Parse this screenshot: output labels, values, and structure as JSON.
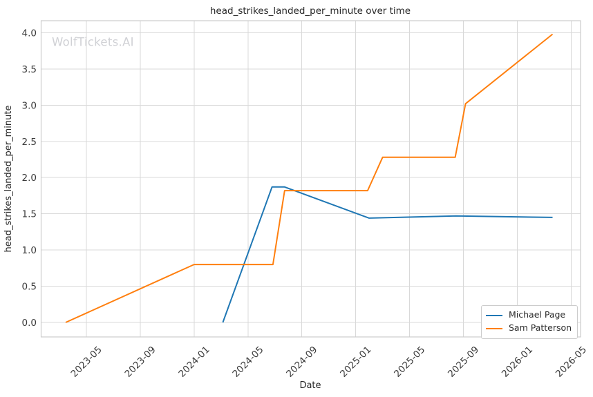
{
  "figure": {
    "background": "#ffffff",
    "watermark": "WolfTickets.AI"
  },
  "chart_data": {
    "type": "line",
    "title": "head_strikes_landed_per_minute over time",
    "xlabel": "Date",
    "ylabel": "head_strikes_landed_per_minute",
    "grid": true,
    "legend_position": "lower right",
    "x_tick_rotation_deg": 45,
    "x_ticks": [
      "2023-05",
      "2023-09",
      "2024-01",
      "2024-05",
      "2024-09",
      "2025-01",
      "2025-05",
      "2025-09",
      "2026-01",
      "2026-05"
    ],
    "y_ticks": [
      "0.0",
      "0.5",
      "1.0",
      "1.5",
      "2.0",
      "2.5",
      "3.0",
      "3.5",
      "4.0"
    ],
    "ylim": [
      -0.2,
      4.17
    ],
    "xlim": [
      "2023-01-19",
      "2026-05-22"
    ],
    "series": [
      {
        "name": "Michael Page",
        "color": "#1f77b4",
        "points": [
          {
            "date": "2024-03-05",
            "value": 0.0
          },
          {
            "date": "2024-06-25",
            "value": 1.87
          },
          {
            "date": "2024-07-23",
            "value": 1.87
          },
          {
            "date": "2025-02-01",
            "value": 1.44
          },
          {
            "date": "2025-08-15",
            "value": 1.47
          },
          {
            "date": "2026-03-20",
            "value": 1.45
          }
        ]
      },
      {
        "name": "Sam Patterson",
        "color": "#ff7f0e",
        "points": [
          {
            "date": "2023-03-15",
            "value": 0.0
          },
          {
            "date": "2024-01-01",
            "value": 0.8
          },
          {
            "date": "2024-06-27",
            "value": 0.8
          },
          {
            "date": "2024-07-23",
            "value": 1.82
          },
          {
            "date": "2025-01-28",
            "value": 1.82
          },
          {
            "date": "2025-03-01",
            "value": 2.28
          },
          {
            "date": "2025-08-13",
            "value": 2.28
          },
          {
            "date": "2025-09-06",
            "value": 3.02
          },
          {
            "date": "2026-03-20",
            "value": 3.98
          }
        ]
      }
    ],
    "colors": {
      "grid": "#d9d9d9",
      "spine": "#cccccc",
      "tick_text": "#3a3a3a",
      "title_text": "#262626",
      "watermark_text": "#d0d1d5"
    }
  }
}
